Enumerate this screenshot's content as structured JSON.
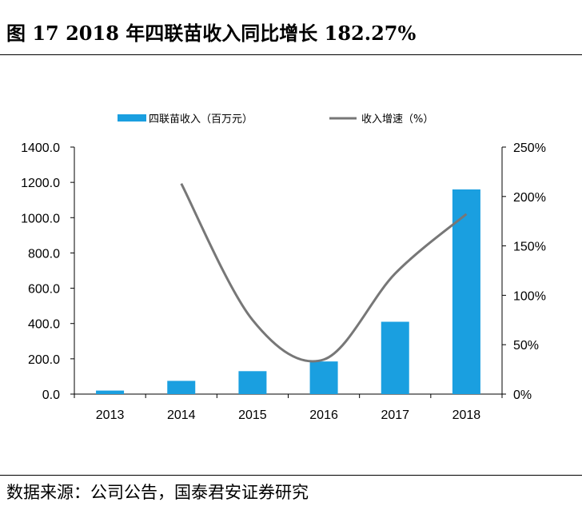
{
  "header": {
    "title": "图 17  2018 年四联苗收入同比增长 182.27%"
  },
  "footer": {
    "source": "数据来源：公司公告，国泰君安证券研究"
  },
  "chart_data": {
    "type": "bar",
    "categories": [
      "2013",
      "2014",
      "2015",
      "2016",
      "2017",
      "2018"
    ],
    "series": [
      {
        "name": "四联苗收入（百万元）",
        "type": "bar",
        "axis": "left",
        "values": [
          20,
          75,
          130,
          185,
          410,
          1160
        ],
        "color": "#1a9fe0"
      },
      {
        "name": "收入增速（%）",
        "type": "line",
        "axis": "right",
        "values": [
          null,
          213,
          75,
          35,
          122,
          182.27
        ],
        "color": "#777777"
      }
    ],
    "left_axis": {
      "min": 0,
      "max": 1400,
      "step": 200,
      "tick_labels": [
        "0.0",
        "200.0",
        "400.0",
        "600.0",
        "800.0",
        "1000.0",
        "1200.0",
        "1400.0"
      ]
    },
    "right_axis": {
      "min": 0,
      "max": 250,
      "step": 50,
      "tick_labels": [
        "0%",
        "50%",
        "100%",
        "150%",
        "200%",
        "250%"
      ]
    },
    "legend": "top",
    "grid": false
  }
}
